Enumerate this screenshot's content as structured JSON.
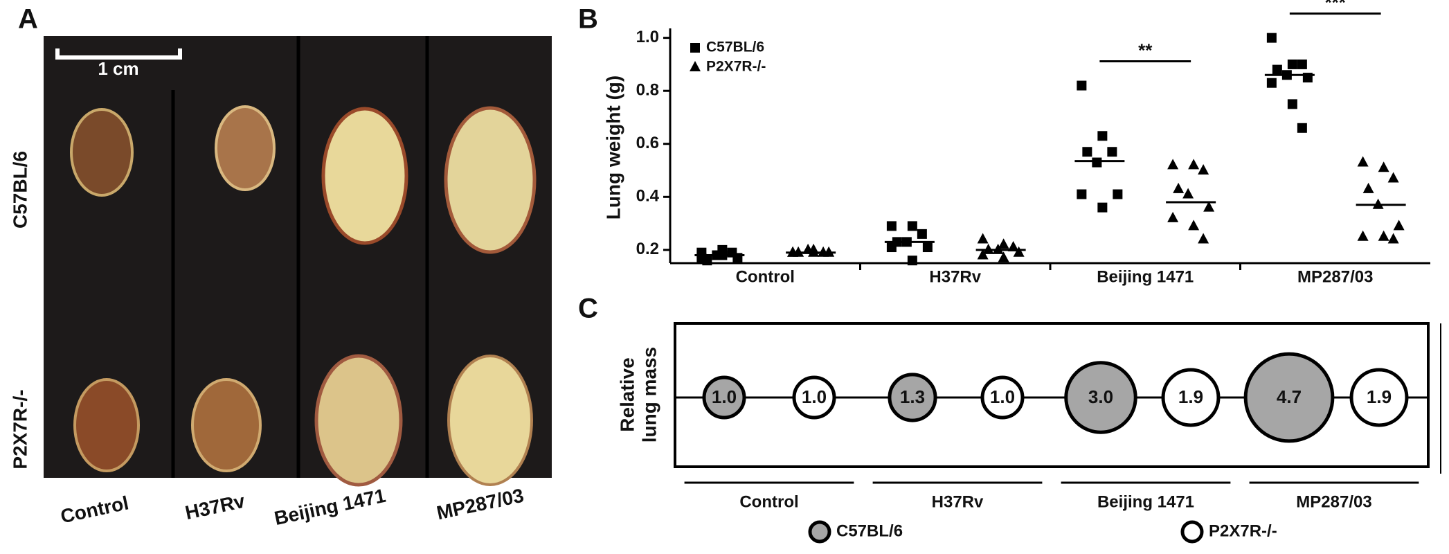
{
  "photo_panel": {
    "panel_label": "A",
    "scale_bar": "1 cm",
    "rows": [
      "C57BL/6",
      "P2X7R-/-"
    ],
    "columns": [
      "Control",
      "H37Rv",
      "Beijing 1471",
      "MP287/03"
    ]
  },
  "chart_data": [
    {
      "type": "scatter",
      "panel_label": "B",
      "ylabel": "Lung weight (g)",
      "categories": [
        "Control",
        "H37Rv",
        "Beijing 1471",
        "MP287/03"
      ],
      "ylim": [
        0.15,
        1.02
      ],
      "yticks": [
        0.2,
        0.4,
        0.6,
        0.8,
        {
          "value": 1,
          "label": "1.0"
        }
      ],
      "series": [
        {
          "name": "C57BL/6",
          "marker": "square",
          "color": "#000000",
          "values": [
            [
              0.17,
              0.18,
              0.19,
              0.16,
              0.18,
              0.17,
              0.19,
              0.2
            ],
            [
              0.29,
              0.29,
              0.26,
              0.23,
              0.23,
              0.21,
              0.21,
              0.16
            ],
            [
              0.82,
              0.63,
              0.57,
              0.57,
              0.53,
              0.41,
              0.41,
              0.36
            ],
            [
              1.0,
              0.9,
              0.9,
              0.88,
              0.86,
              0.85,
              0.83,
              0.75,
              0.66
            ]
          ],
          "means": [
            0.18,
            0.23,
            0.535,
            0.86
          ]
        },
        {
          "name": "P2X7R-/-",
          "marker": "triangle",
          "color": "#000000",
          "values": [
            [
              0.19,
              0.2,
              0.19,
              0.19,
              0.2,
              0.19,
              0.19,
              0.19
            ],
            [
              0.24,
              0.22,
              0.21,
              0.2,
              0.2,
              0.19,
              0.18,
              0.17
            ],
            [
              0.52,
              0.52,
              0.5,
              0.43,
              0.41,
              0.36,
              0.32,
              0.29,
              0.24
            ],
            [
              0.53,
              0.51,
              0.47,
              0.43,
              0.37,
              0.29,
              0.25,
              0.25,
              0.24
            ]
          ],
          "means": [
            0.19,
            0.2,
            0.38,
            0.37
          ]
        }
      ],
      "annotations": [
        {
          "text": "**",
          "category": "Beijing 1471"
        },
        {
          "text": "***",
          "category": "MP287/03"
        }
      ],
      "legend": "upper left"
    },
    {
      "type": "bubble",
      "panel_label": "C",
      "ylabel": [
        "Relative",
        "lung mass"
      ],
      "categories": [
        "Control",
        "H37Rv",
        "Beijing 1471",
        "MP287/03"
      ],
      "series": [
        {
          "name": "C57BL/6",
          "color": "#a6a6a6",
          "values": [
            1,
            1.3,
            3,
            4.7
          ],
          "value_labels": [
            "1.0",
            "1.3",
            "3.0",
            "4.7"
          ]
        },
        {
          "name": "P2X7R-/-",
          "color": "#ffffff",
          "values": [
            1,
            1,
            1.9,
            1.9
          ],
          "value_labels": [
            "1.0",
            "1.0",
            "1.9",
            "1.9"
          ]
        }
      ],
      "legend": "bottom"
    }
  ]
}
